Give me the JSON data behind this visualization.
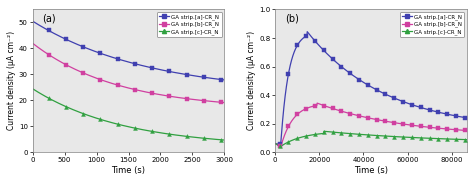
{
  "panel_a": {
    "title": "(a)",
    "xlabel": "Time (s)",
    "ylabel": "Current density (μA cm⁻²)",
    "xlim": [
      0,
      3000
    ],
    "ylim": [
      0,
      55
    ],
    "yticks": [
      0,
      10,
      20,
      30,
      40,
      50
    ],
    "xticks": [
      0,
      500,
      1000,
      1500,
      2000,
      2500,
      3000
    ],
    "bg_color": "#e8e8e8",
    "series": [
      {
        "label": "GA strip.[a]-CR_N",
        "color": "#4040b0",
        "marker": "s",
        "y0": 50.5,
        "y_inf": 22.5,
        "k": 0.00055
      },
      {
        "label": "GA strip.[b]-CR_N",
        "color": "#d040a0",
        "marker": "s",
        "y0": 42.0,
        "y_inf": 16.5,
        "k": 0.00075
      },
      {
        "label": "GA strip.[c]-CR_N",
        "color": "#30a040",
        "marker": "^",
        "y0": 24.5,
        "y_inf": 2.0,
        "k": 0.0007
      }
    ]
  },
  "panel_b": {
    "title": "(b)",
    "xlabel": "Time (s)",
    "ylabel": "Current density (μA cm⁻²)",
    "xlim": [
      0,
      87000
    ],
    "ylim": [
      0,
      1.0
    ],
    "yticks": [
      0.0,
      0.2,
      0.4,
      0.6,
      0.8,
      1.0
    ],
    "xticks": [
      0,
      20000,
      40000,
      60000,
      80000
    ],
    "bg_color": "#e8e8e8",
    "series": [
      {
        "label": "GA strip.[a]-CR_N",
        "color": "#4040b0",
        "marker": "s",
        "init_y": 0.062,
        "drop_x": 2500,
        "drop_y": 0.055,
        "rise_k": 0.00028,
        "peak_x": 14500,
        "peak_y": 0.845,
        "fall_k": 2.8e-05,
        "end_y": 0.15
      },
      {
        "label": "GA strip.[b]-CR_N",
        "color": "#d040a0",
        "marker": "s",
        "init_y": 0.062,
        "drop_x": 2500,
        "drop_y": 0.038,
        "rise_k": 0.00018,
        "peak_x": 19000,
        "peak_y": 0.345,
        "fall_k": 2.5e-05,
        "end_y": 0.11
      },
      {
        "label": "GA strip.[c]-CR_N",
        "color": "#30a040",
        "marker": "^",
        "init_y": 0.062,
        "drop_x": 2500,
        "drop_y": 0.042,
        "rise_k": 0.0001,
        "peak_x": 22000,
        "peak_y": 0.148,
        "fall_k": 1.8e-05,
        "end_y": 0.063
      }
    ]
  }
}
